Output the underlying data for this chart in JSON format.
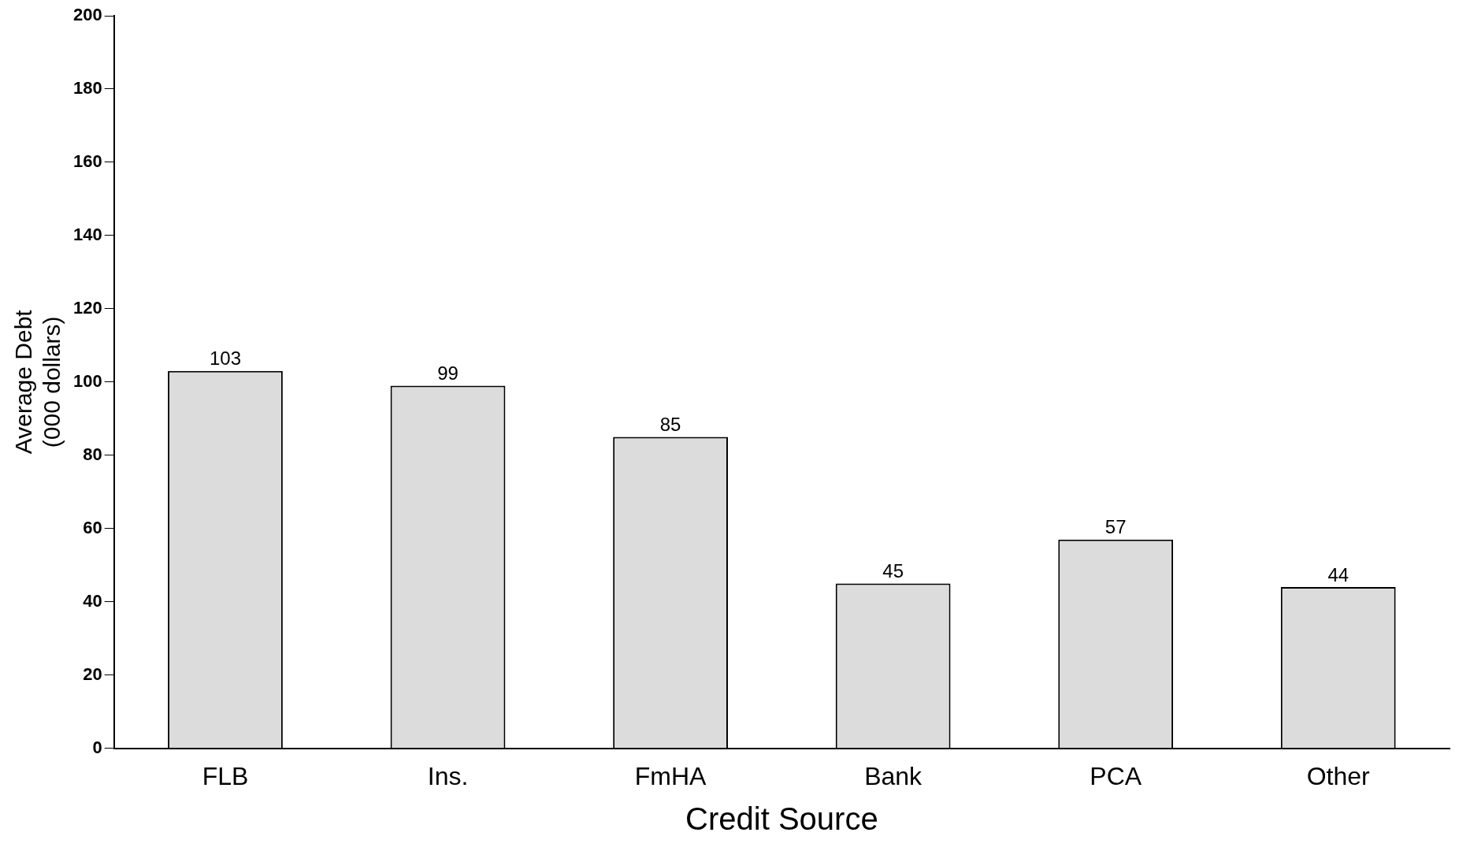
{
  "chart_data": {
    "type": "bar",
    "xlabel": "Credit Source",
    "ylabel": "Average Debt\n(000 dollars)",
    "categories": [
      "FLB",
      "Ins.",
      "FmHA",
      "Bank",
      "PCA",
      "Other"
    ],
    "values": [
      103,
      99,
      85,
      45,
      57,
      44
    ],
    "color": "#dcdcdc",
    "ylim": [
      0,
      200
    ],
    "yticks": [
      0,
      20,
      40,
      60,
      80,
      100,
      120,
      140,
      160,
      180,
      200
    ],
    "grid": false,
    "data_labels": true
  }
}
